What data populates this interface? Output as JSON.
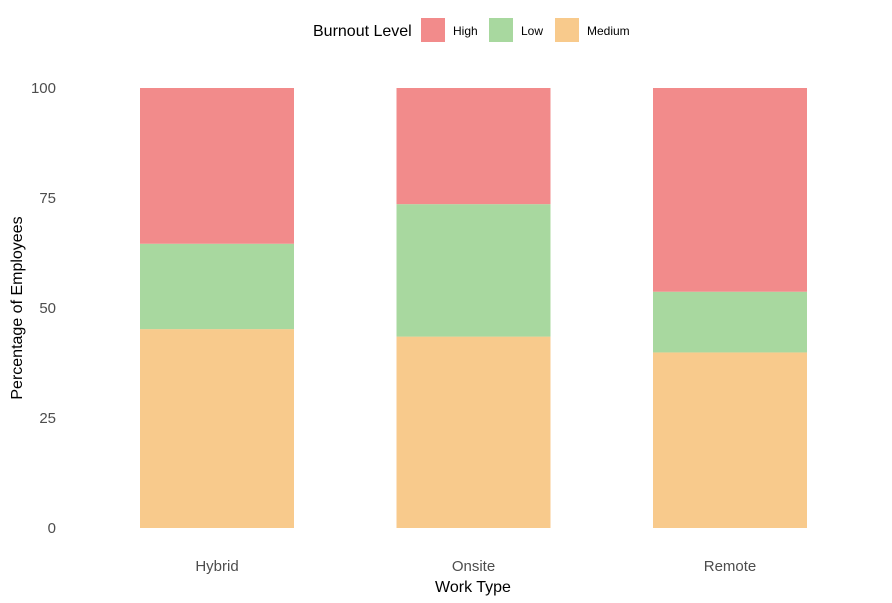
{
  "chart_data": {
    "type": "bar",
    "stacked": true,
    "categories": [
      "Hybrid",
      "Onsite",
      "Remote"
    ],
    "series": [
      {
        "name": "Medium",
        "values": [
          45.2,
          43.5,
          39.9
        ],
        "color": "#F8CA8C"
      },
      {
        "name": "Low",
        "values": [
          19.4,
          30.1,
          13.8
        ],
        "color": "#A8D89F"
      },
      {
        "name": "High",
        "values": [
          35.4,
          26.4,
          46.3
        ],
        "color": "#F28B8B"
      }
    ],
    "legend": {
      "title": "Burnout Level",
      "position": "top",
      "order": [
        "High",
        "Low",
        "Medium"
      ]
    },
    "xlabel": "Work Type",
    "ylabel": "Percentage of Employees",
    "ylim": [
      0,
      100
    ],
    "yticks": [
      0,
      25,
      50,
      75,
      100
    ],
    "grid": false
  }
}
